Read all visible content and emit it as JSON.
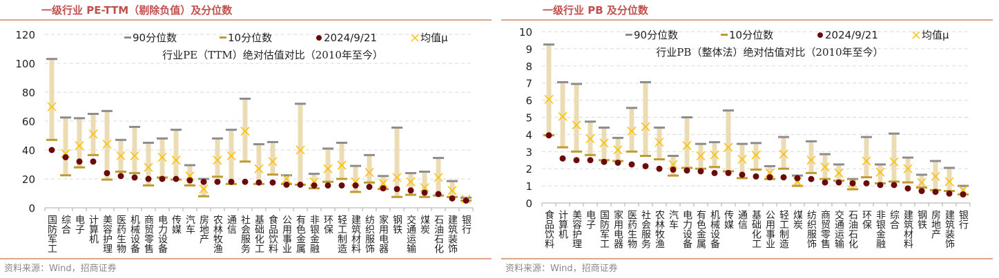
{
  "legend": {
    "p90": "90分位数",
    "p10": "10分位数",
    "current": "2024/9/21",
    "mean": "均值μ"
  },
  "colors": {
    "title": "#c0504d",
    "range": "#ecdcb4",
    "p90": "#8c8c8c",
    "p10": "#bf9a30",
    "current": "#6b0a0a",
    "mean": "#ffc000"
  },
  "source": "资料来源：Wind，招商证券",
  "chart_data": [
    {
      "type": "range-dot",
      "title": "一级行业 PE-TTM（剔除负值）及分位数",
      "subtitle": "行业PE（TTM）绝对估值对比（2010年至今）",
      "ylim": [
        0,
        120
      ],
      "yticks": [
        0,
        20,
        40,
        60,
        80,
        100,
        120
      ],
      "categories": [
        "国防军工",
        "综合",
        "电子",
        "计算机",
        "美容护理",
        "医药生物",
        "机械设备",
        "商贸零售",
        "电力设备",
        "传媒",
        "汽车",
        "房地产",
        "农林牧渔",
        "通信",
        "社会服务",
        "基础化工",
        "食品饮料",
        "公用事业",
        "有色金属",
        "非银金融",
        "环保",
        "轻工制造",
        "建筑材料",
        "纺织服饰",
        "家用电器",
        "钢铁",
        "交通运输",
        "煤炭",
        "石油石化",
        "建筑装饰",
        "银行"
      ],
      "p90": [
        103,
        62.5,
        62,
        65,
        67,
        47,
        56,
        45,
        48,
        54,
        29.5,
        20,
        48,
        54,
        75.5,
        44,
        45.5,
        22.5,
        72,
        23.5,
        41,
        45,
        29,
        36.5,
        22,
        55.5,
        24,
        25,
        34.5,
        18.5,
        7
      ],
      "p10": [
        47,
        22.5,
        28,
        36.5,
        19.5,
        25,
        24,
        15.5,
        21,
        19.5,
        15.5,
        8,
        21.5,
        16.5,
        32,
        16.5,
        23,
        16.5,
        16,
        13.5,
        18,
        20,
        11,
        17.5,
        13,
        7.5,
        9,
        7.5,
        8.5,
        7.5,
        5
      ],
      "current": [
        40,
        35,
        32,
        32,
        24,
        22,
        21,
        20,
        20,
        20,
        19,
        18,
        18,
        18,
        18,
        17.5,
        17.5,
        16,
        16,
        15.5,
        15.5,
        15.5,
        15.5,
        14.5,
        13.5,
        13,
        12,
        10.5,
        9.5,
        6.5,
        5
      ],
      "mean": [
        70,
        37.5,
        43,
        51,
        44,
        36,
        36,
        28,
        35,
        33,
        22,
        13,
        33,
        36,
        53,
        27,
        32,
        20,
        40,
        18,
        27,
        29.5,
        18,
        24.5,
        17,
        21,
        18,
        14,
        21,
        12,
        6
      ]
    },
    {
      "type": "range-dot",
      "title": "一级行业 PB 及分位数",
      "subtitle": "行业PB（整体法）绝对估值对比（2010年至今）",
      "ylim": [
        0,
        10
      ],
      "yticks": [
        0,
        1,
        2,
        3,
        4,
        5,
        6,
        7,
        8,
        9,
        10
      ],
      "categories": [
        "食品饮料",
        "计算机",
        "美容护理",
        "电子",
        "国防军工",
        "家用电器",
        "医药生物",
        "社会服务",
        "农林牧渔",
        "汽车",
        "电力设备",
        "有色金属",
        "机械设备",
        "传媒",
        "通信",
        "基础化工",
        "公用事业",
        "轻工制造",
        "煤炭",
        "纺织服饰",
        "商贸零售",
        "交通运输",
        "石油石化",
        "环保",
        "非银金融",
        "综合",
        "建筑材料",
        "钢铁",
        "房地产",
        "建筑装饰",
        "银行"
      ],
      "p90": [
        9.25,
        7.05,
        6.95,
        4.75,
        4.4,
        3.8,
        5.55,
        7.05,
        4.4,
        2.75,
        5.0,
        3.45,
        3.55,
        5.4,
        3.45,
        3.5,
        2.15,
        3.85,
        1.6,
        3.6,
        2.85,
        2.25,
        1.4,
        3.85,
        2.25,
        4.05,
        2.65,
        1.65,
        2.45,
        2.05,
        1.0
      ],
      "p10": [
        3.95,
        3.25,
        3.0,
        2.8,
        2.5,
        2.45,
        3.0,
        2.75,
        2.55,
        1.6,
        2.05,
        2.0,
        2.1,
        1.85,
        1.45,
        1.95,
        1.4,
        2.0,
        1.0,
        1.75,
        1.4,
        1.3,
        0.8,
        1.5,
        1.15,
        1.25,
        1.2,
        0.9,
        0.75,
        0.7,
        0.5
      ],
      "current": [
        3.95,
        2.6,
        2.5,
        2.5,
        2.4,
        2.35,
        2.25,
        2.15,
        2.0,
        1.95,
        1.9,
        1.85,
        1.75,
        1.75,
        1.65,
        1.55,
        1.5,
        1.5,
        1.45,
        1.4,
        1.2,
        1.2,
        1.15,
        1.15,
        1.05,
        1.05,
        0.85,
        0.7,
        0.65,
        0.55,
        0.5
      ],
      "mean": [
        6.05,
        5.05,
        4.55,
        3.75,
        3.5,
        3.1,
        4.2,
        4.45,
        3.55,
        2.25,
        3.35,
        2.75,
        2.8,
        3.25,
        2.55,
        2.8,
        1.75,
        2.85,
        1.25,
        2.5,
        2.1,
        1.75,
        1.15,
        2.45,
        1.8,
        2.4,
        2.0,
        1.2,
        1.55,
        1.25,
        0.75
      ]
    }
  ]
}
